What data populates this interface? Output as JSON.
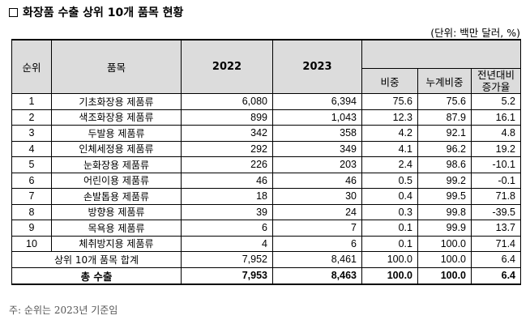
{
  "title": "화장품 수출 상위 10개 품목 현황",
  "unit": "(단위: 백만 달러, %)",
  "headers": {
    "rank": "순위",
    "item": "품목",
    "y2022": "2022",
    "y2023": "2023",
    "share": "비중",
    "cumulative": "누계비중",
    "growth_line1": "전년대비",
    "growth_line2": "증가율"
  },
  "rows": [
    {
      "rank": "1",
      "item": "기초화장용 제품류",
      "y2022": "6,080",
      "y2023": "6,394",
      "share": "75.6",
      "cumulative": "75.6",
      "growth": "5.2"
    },
    {
      "rank": "2",
      "item": "색조화장용 제품류",
      "y2022": "899",
      "y2023": "1,043",
      "share": "12.3",
      "cumulative": "87.9",
      "growth": "16.1"
    },
    {
      "rank": "3",
      "item": "두발용 제품류",
      "y2022": "342",
      "y2023": "358",
      "share": "4.2",
      "cumulative": "92.1",
      "growth": "4.8"
    },
    {
      "rank": "4",
      "item": "인체세정용 제품류",
      "y2022": "292",
      "y2023": "349",
      "share": "4.1",
      "cumulative": "96.2",
      "growth": "19.2"
    },
    {
      "rank": "5",
      "item": "눈화장용 제품류",
      "y2022": "226",
      "y2023": "203",
      "share": "2.4",
      "cumulative": "98.6",
      "growth": "-10.1"
    },
    {
      "rank": "6",
      "item": "어린이용 제품류",
      "y2022": "46",
      "y2023": "46",
      "share": "0.5",
      "cumulative": "99.2",
      "growth": "-0.1"
    },
    {
      "rank": "7",
      "item": "손발톱용 제품류",
      "y2022": "18",
      "y2023": "30",
      "share": "0.4",
      "cumulative": "99.5",
      "growth": "71.8"
    },
    {
      "rank": "8",
      "item": "방향용 제품류",
      "y2022": "39",
      "y2023": "24",
      "share": "0.3",
      "cumulative": "99.8",
      "growth": "-39.5"
    },
    {
      "rank": "9",
      "item": "목욕용 제품류",
      "y2022": "6",
      "y2023": "7",
      "share": "0.1",
      "cumulative": "99.9",
      "growth": "13.7"
    },
    {
      "rank": "10",
      "item": "체취방지용 제품류",
      "y2022": "4",
      "y2023": "6",
      "share": "0.1",
      "cumulative": "100.0",
      "growth": "71.4"
    }
  ],
  "subtotal": {
    "label": "상위 10개 품목 합계",
    "y2022": "7,952",
    "y2023": "8,461",
    "share": "100.0",
    "cumulative": "100.0",
    "growth": "6.4"
  },
  "total": {
    "label": "총 수출",
    "y2022": "7,953",
    "y2023": "8,463",
    "share": "100.0",
    "cumulative": "100.0",
    "growth": "6.4"
  },
  "note": "주: 순위는 2023년 기준임"
}
